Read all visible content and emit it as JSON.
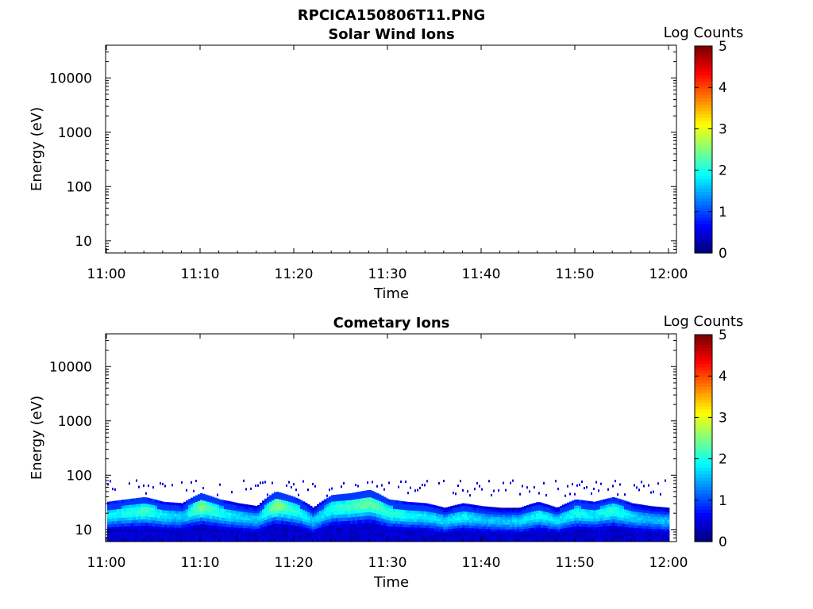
{
  "figure": {
    "file_title": "RPCICA150806T11.PNG"
  },
  "chart_data": [
    {
      "type": "heatmap",
      "title": "Solar Wind Ions",
      "xlabel": "Time",
      "ylabel": "Energy (eV)",
      "x_range": [
        "11:00",
        "12:01"
      ],
      "x_ticks": [
        "11:00",
        "11:10",
        "11:20",
        "11:30",
        "11:40",
        "11:50",
        "12:00"
      ],
      "y_scale": "log",
      "y_range": [
        6,
        40000
      ],
      "y_ticks": [
        10,
        100,
        1000,
        10000
      ],
      "y_tick_labels": [
        "10",
        "100",
        "1000",
        "10000"
      ],
      "colorbar": {
        "label": "Log Counts",
        "min": 0,
        "max": 5,
        "ticks": [
          "0",
          "1",
          "2",
          "3",
          "4",
          "5"
        ],
        "colormap": "jet"
      },
      "data": []
    },
    {
      "type": "heatmap",
      "title": "Cometary Ions",
      "xlabel": "Time",
      "ylabel": "Energy (eV)",
      "x_range": [
        "11:00",
        "12:01"
      ],
      "x_ticks": [
        "11:00",
        "11:10",
        "11:20",
        "11:30",
        "11:40",
        "11:50",
        "12:00"
      ],
      "y_scale": "log",
      "y_range": [
        6,
        40000
      ],
      "y_ticks": [
        10,
        100,
        1000,
        10000
      ],
      "y_tick_labels": [
        "10",
        "100",
        "1000",
        "10000"
      ],
      "colorbar": {
        "label": "Log Counts",
        "min": 0,
        "max": 5,
        "ticks": [
          "0",
          "1",
          "2",
          "3",
          "4",
          "5"
        ],
        "colormap": "jet"
      },
      "band": {
        "description_values": "approximate peak energy (eV) and peak log counts vs minutes after 11:00",
        "minutes": [
          0,
          2,
          4,
          6,
          8,
          10,
          12,
          14,
          16,
          18,
          20,
          22,
          24,
          26,
          28,
          30,
          32,
          34,
          36,
          38,
          40,
          42,
          44,
          46,
          48,
          50,
          52,
          54,
          56,
          58,
          60
        ],
        "peak_energy": [
          18,
          20,
          22,
          18,
          17,
          26,
          20,
          17,
          15,
          28,
          22,
          14,
          24,
          26,
          30,
          20,
          18,
          17,
          14,
          17,
          15,
          14,
          14,
          18,
          14,
          20,
          18,
          22,
          17,
          15,
          14
        ],
        "peak_log_counts": [
          1.8,
          2.0,
          2.2,
          1.8,
          1.6,
          2.5,
          2.0,
          1.7,
          1.6,
          2.6,
          2.1,
          1.6,
          2.0,
          2.2,
          2.4,
          2.1,
          1.9,
          1.8,
          1.7,
          1.9,
          1.6,
          1.6,
          1.7,
          1.9,
          1.7,
          2.0,
          1.8,
          2.1,
          1.7,
          1.5,
          1.6
        ],
        "sparse_upper_energy": 80
      }
    }
  ]
}
